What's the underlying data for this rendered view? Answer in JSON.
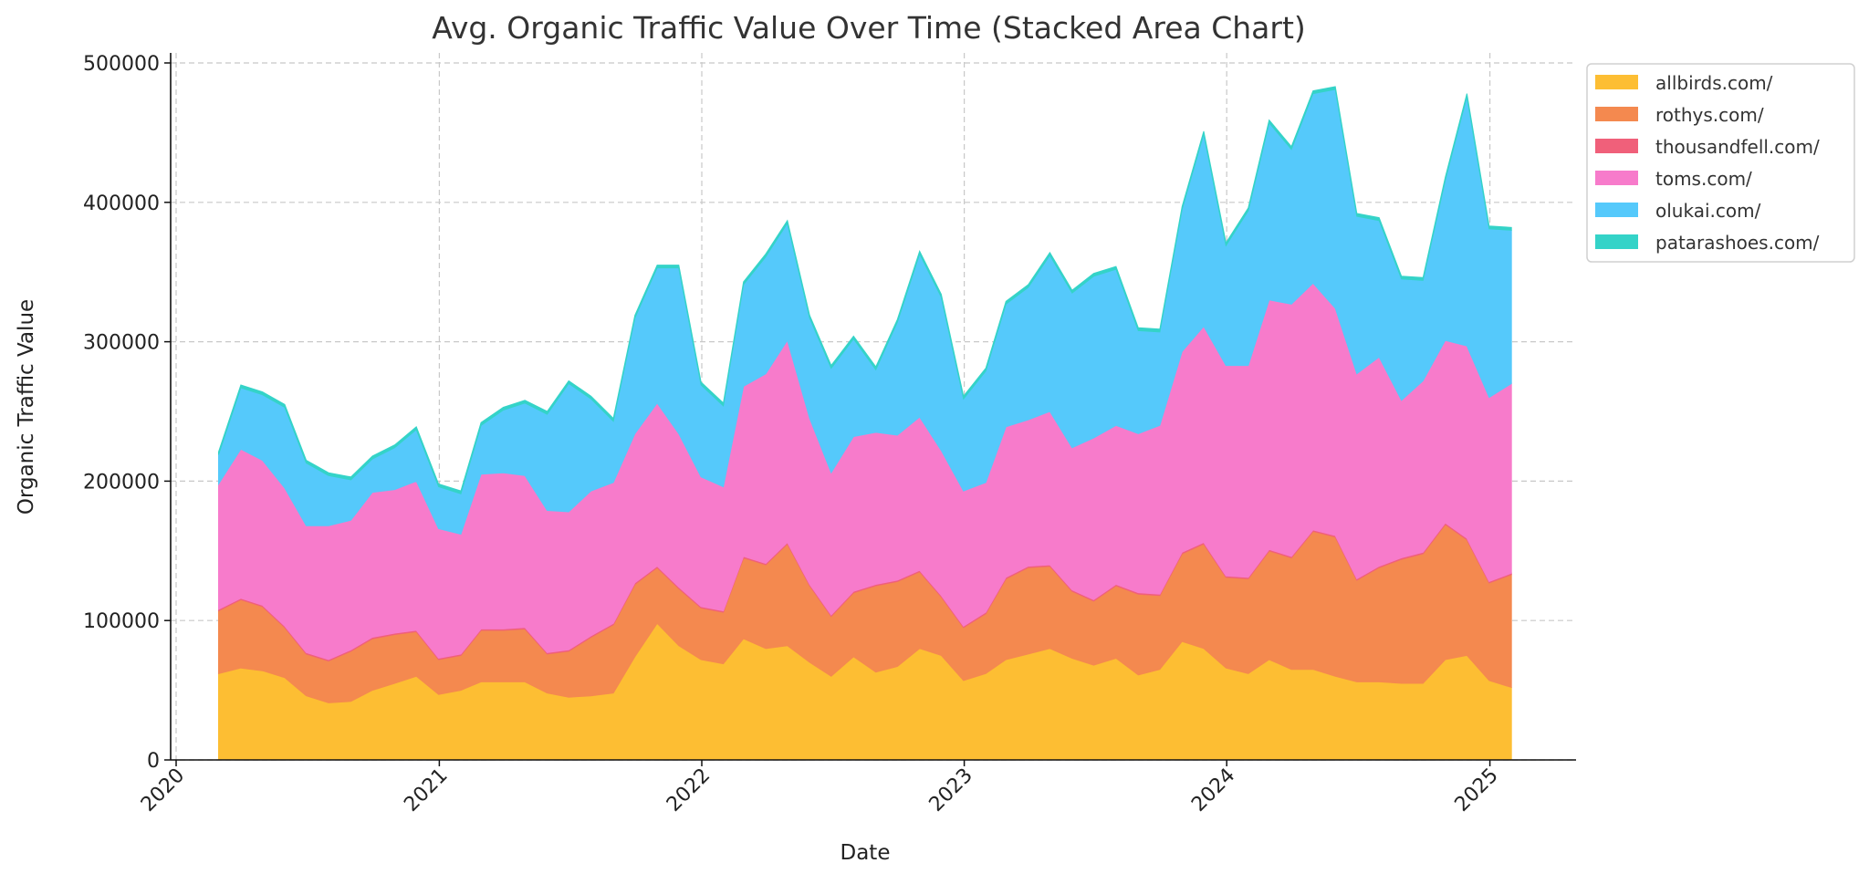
{
  "chart_data": {
    "type": "area",
    "stacked": true,
    "title": "Avg. Organic Traffic Value Over Time (Stacked Area Chart)",
    "xlabel": "Date",
    "ylabel": "Organic Traffic Value",
    "ylim": [
      0,
      510000
    ],
    "xlim": [
      "2019-10-01",
      "2025-04-15"
    ],
    "yticks": [
      0,
      100000,
      200000,
      300000,
      400000,
      500000
    ],
    "xticks": [
      "2020",
      "2021",
      "2022",
      "2023",
      "2024",
      "2025"
    ],
    "grid": true,
    "legend_position": "outside-top-right",
    "x": [
      "2020-02-29",
      "2020-03-31",
      "2020-04-30",
      "2020-05-31",
      "2020-06-30",
      "2020-07-31",
      "2020-08-31",
      "2020-09-30",
      "2020-10-31",
      "2020-11-30",
      "2020-12-31",
      "2021-01-31",
      "2021-02-28",
      "2021-03-31",
      "2021-04-30",
      "2021-05-31",
      "2021-06-30",
      "2021-07-31",
      "2021-08-31",
      "2021-09-30",
      "2021-10-31",
      "2021-11-30",
      "2021-12-31",
      "2022-01-31",
      "2022-02-28",
      "2022-03-31",
      "2022-04-30",
      "2022-05-31",
      "2022-06-30",
      "2022-07-31",
      "2022-08-31",
      "2022-09-30",
      "2022-10-31",
      "2022-11-30",
      "2022-12-31",
      "2023-01-31",
      "2023-02-28",
      "2023-03-31",
      "2023-04-30",
      "2023-05-31",
      "2023-06-30",
      "2023-07-31",
      "2023-08-31",
      "2023-09-30",
      "2023-10-31",
      "2023-11-30",
      "2023-12-31",
      "2024-01-31",
      "2024-02-29",
      "2024-03-31",
      "2024-04-30",
      "2024-05-31",
      "2024-06-30",
      "2024-07-31",
      "2024-08-31",
      "2024-09-30",
      "2024-10-31",
      "2024-11-30",
      "2024-12-31",
      "2025-01-31"
    ],
    "series": [
      {
        "name": "allbirds.com/",
        "color": "#FDBE33",
        "values": [
          62000,
          66000,
          64000,
          59000,
          46000,
          41000,
          42000,
          50000,
          55000,
          60000,
          47000,
          50000,
          56000,
          56000,
          56000,
          48000,
          45000,
          46000,
          48000,
          74000,
          98000,
          82000,
          72000,
          69000,
          87000,
          80000,
          82000,
          70000,
          60000,
          74000,
          63000,
          67000,
          80000,
          75000,
          57000,
          62000,
          72000,
          76000,
          80000,
          73000,
          68000,
          73000,
          61000,
          65000,
          85000,
          80000,
          66000,
          62000,
          72000,
          65000,
          65000,
          60000,
          56000,
          56000,
          55000,
          55000,
          72000,
          75000,
          57000,
          52000
        ]
      },
      {
        "name": "rothys.com/",
        "color": "#F4894F",
        "values": [
          45000,
          49000,
          46000,
          36000,
          30000,
          30000,
          36000,
          37000,
          35000,
          32000,
          25000,
          25000,
          37000,
          37000,
          38000,
          28000,
          33000,
          42000,
          49000,
          52000,
          40000,
          41000,
          37000,
          37000,
          58000,
          60000,
          73000,
          55000,
          43000,
          46000,
          62000,
          61000,
          55000,
          42000,
          38000,
          43000,
          58000,
          62000,
          59000,
          48000,
          46000,
          52000,
          58000,
          53000,
          63000,
          75000,
          65000,
          68000,
          78000,
          80000,
          99000,
          100000,
          73000,
          82000,
          89000,
          93000,
          97000,
          83000,
          70000,
          81000
        ]
      },
      {
        "name": "thousandfell.com/",
        "color": "#F0607A",
        "values": [
          1000,
          1000,
          1000,
          1000,
          1000,
          1000,
          1000,
          1000,
          1000,
          1000,
          1000,
          1000,
          1000,
          1000,
          1000,
          1000,
          1000,
          1000,
          1000,
          1000,
          1000,
          1000,
          1000,
          1000,
          1000,
          1000,
          1000,
          1000,
          1000,
          1000,
          1000,
          1000,
          1000,
          1000,
          1000,
          1000,
          1000,
          1000,
          1000,
          1000,
          1000,
          1000,
          1000,
          1000,
          1000,
          1000,
          1000,
          1000,
          1000,
          1000,
          1000,
          1000,
          1000,
          1000,
          1000,
          1000,
          1000,
          1000,
          1000,
          1000
        ]
      },
      {
        "name": "toms.com/",
        "color": "#F77BCB",
        "values": [
          90000,
          107000,
          104000,
          99000,
          91000,
          96000,
          93000,
          104000,
          103000,
          107000,
          93000,
          86000,
          111000,
          112000,
          109000,
          102000,
          99000,
          104000,
          101000,
          107000,
          117000,
          110000,
          93000,
          89000,
          122000,
          136000,
          145000,
          119000,
          102000,
          111000,
          109000,
          104000,
          110000,
          104000,
          97000,
          93000,
          108000,
          105000,
          110000,
          102000,
          116000,
          114000,
          114000,
          121000,
          144000,
          155000,
          151000,
          152000,
          179000,
          181000,
          177000,
          163000,
          147000,
          150000,
          113000,
          123000,
          131000,
          138000,
          132000,
          136000
        ]
      },
      {
        "name": "olukai.com/",
        "color": "#55C9FB",
        "values": [
          21000,
          44000,
          47000,
          58000,
          45000,
          36000,
          29000,
          24000,
          30000,
          37000,
          30000,
          29000,
          35000,
          45000,
          52000,
          69000,
          92000,
          66000,
          44000,
          83000,
          97000,
          119000,
          66000,
          58000,
          73000,
          84000,
          84000,
          72000,
          75000,
          70000,
          45000,
          81000,
          117000,
          110000,
          66000,
          80000,
          88000,
          95000,
          112000,
          111000,
          116000,
          112000,
          74000,
          67000,
          102000,
          138000,
          86000,
          111000,
          127000,
          111000,
          136000,
          157000,
          113000,
          98000,
          87000,
          72000,
          115000,
          179000,
          121000,
          110000
        ]
      },
      {
        "name": "patarashoes.com/",
        "color": "#34D3C8",
        "values": [
          2000,
          2000,
          2000,
          2000,
          2000,
          2000,
          2000,
          2000,
          2000,
          2000,
          2000,
          2000,
          2000,
          2000,
          2000,
          2000,
          2000,
          2000,
          2000,
          2000,
          2000,
          2000,
          2000,
          2000,
          2000,
          2000,
          2000,
          2000,
          2000,
          2000,
          2000,
          2000,
          2000,
          2000,
          2000,
          2000,
          2000,
          2000,
          2000,
          2000,
          2000,
          2000,
          2000,
          2000,
          2000,
          2000,
          2000,
          2000,
          2000,
          2000,
          2000,
          2000,
          2000,
          2000,
          2000,
          2000,
          2000,
          2000,
          2000,
          2000
        ]
      }
    ]
  }
}
